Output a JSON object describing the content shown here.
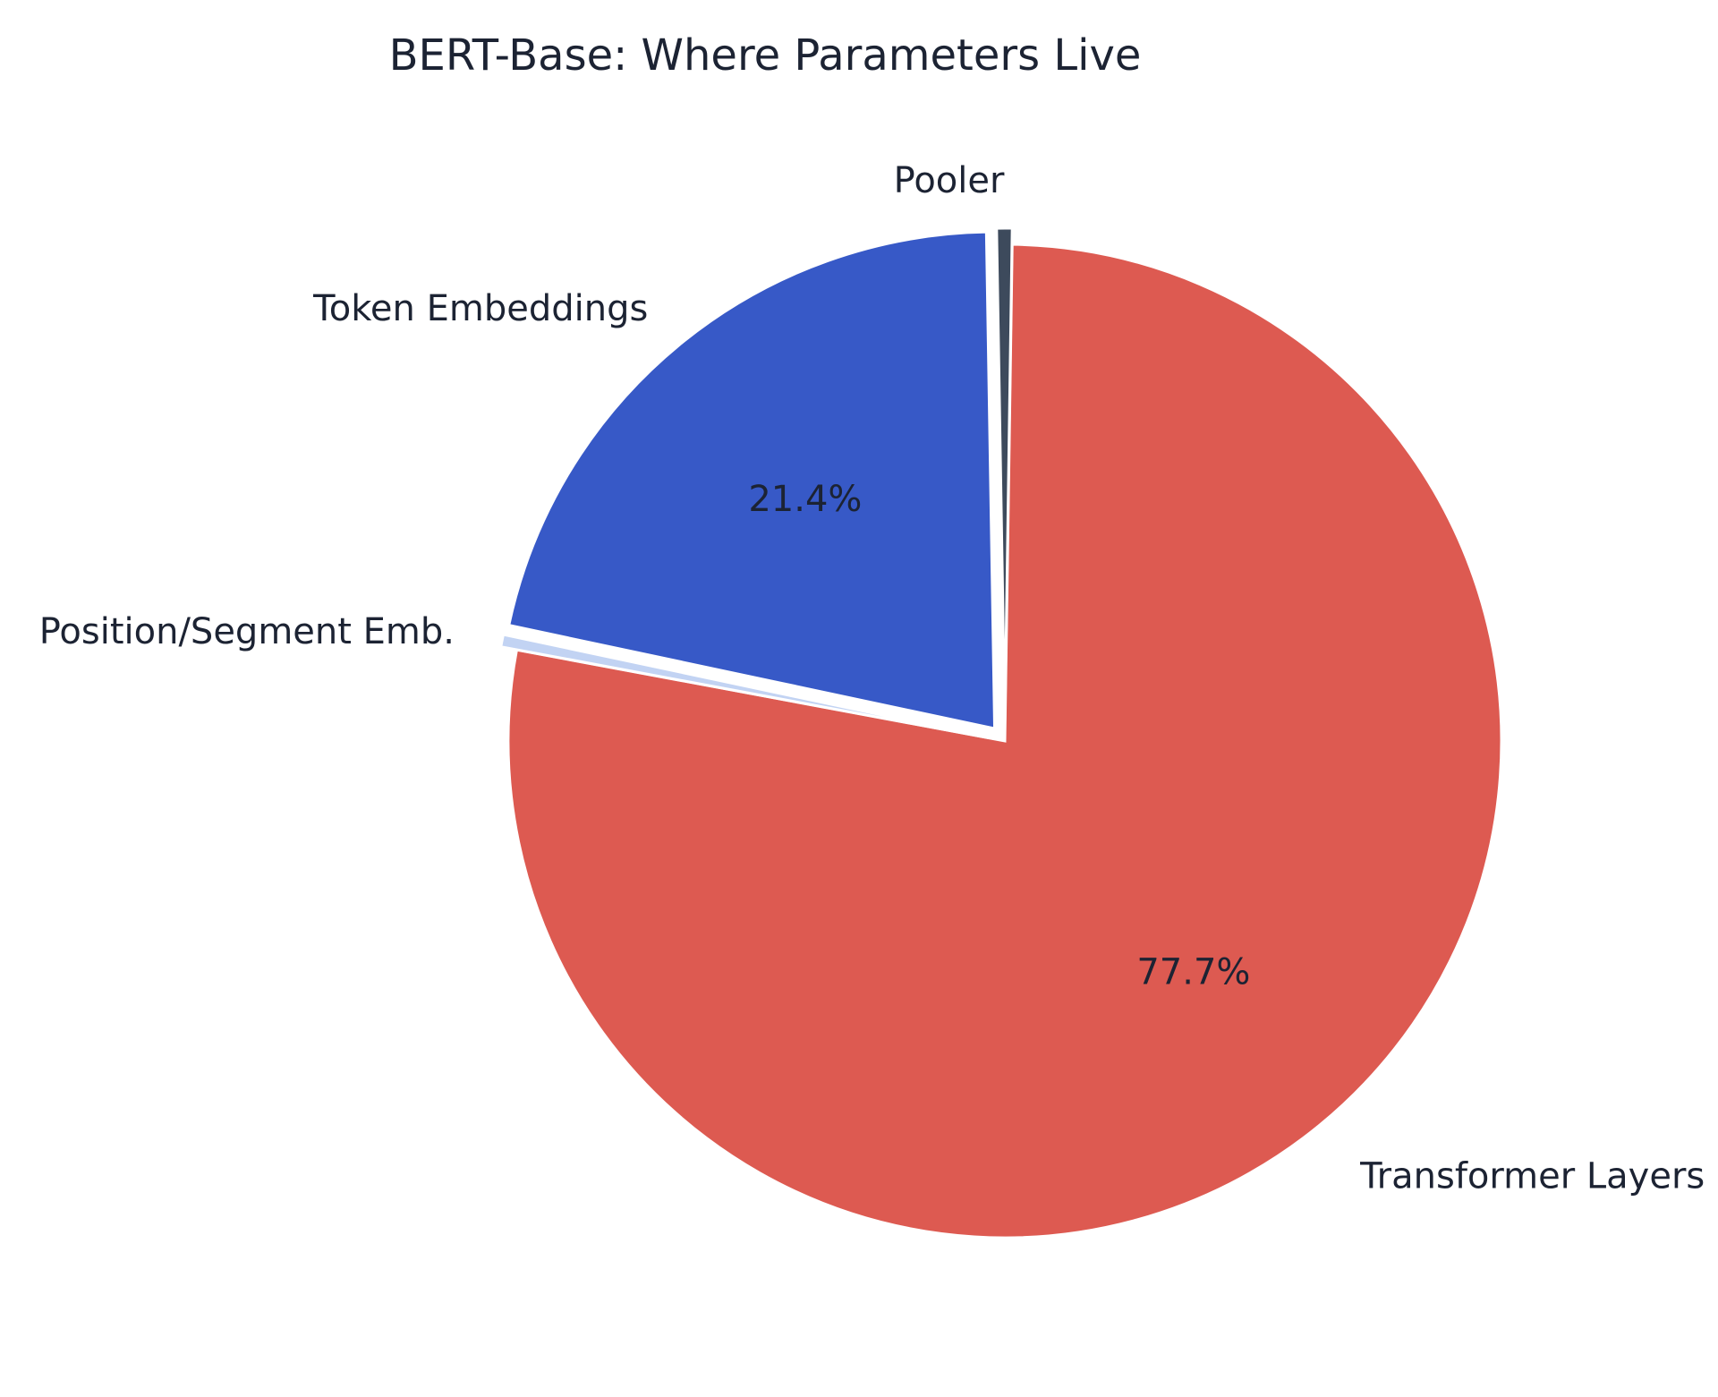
{
  "chart_data": {
    "type": "pie",
    "title": "BERT-Base: Where Parameters Live",
    "slices": [
      {
        "label": "Transformer Layers",
        "value": 77.7,
        "color": "#dd5a51",
        "pct_label": "77.7%",
        "explode": false
      },
      {
        "label": "Position/Segment Emb.",
        "value": 0.4,
        "color": "#c2d3f3",
        "pct_label": "",
        "explode": true
      },
      {
        "label": "Token Embeddings",
        "value": 21.4,
        "color": "#3759c7",
        "pct_label": "21.4%",
        "explode": true
      },
      {
        "label": "Pooler",
        "value": 0.5,
        "color": "#3d4a5c",
        "pct_label": "",
        "explode": true
      }
    ],
    "start_angle_deg": 0.85,
    "direction": "clockwise",
    "legend": "none"
  }
}
